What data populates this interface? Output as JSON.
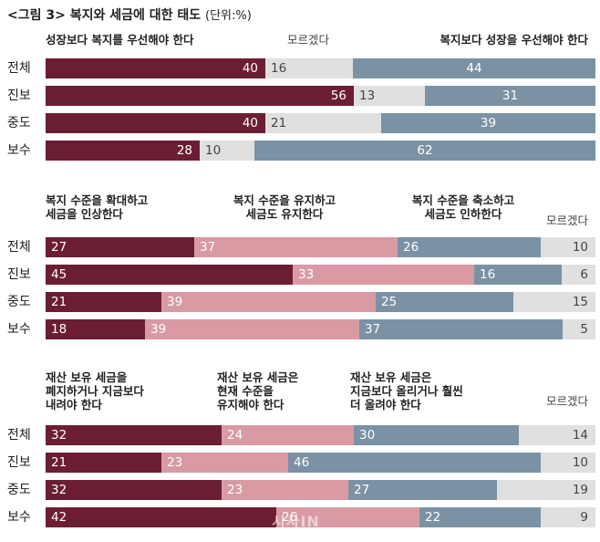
{
  "title": "<그림 3> 복지와 세금에 대한 태도",
  "unit": "(단위:%)",
  "watermark": "시사IN",
  "colors": {
    "dark": "#6b1e33",
    "pink": "#d99aa4",
    "blue": "#7b92a5",
    "gray": "#e0e0e0"
  },
  "chart_data": [
    {
      "type": "bar",
      "stacked": true,
      "orientation": "horizontal",
      "categories": [
        "전체",
        "진보",
        "중도",
        "보수"
      ],
      "series": [
        {
          "name": "성장보다 복지를 우선해야 한다",
          "values": [
            40,
            56,
            40,
            28
          ]
        },
        {
          "name": "모르겠다",
          "values": [
            16,
            13,
            21,
            10
          ]
        },
        {
          "name": "복지보다 성장을 우선해야 한다",
          "values": [
            44,
            31,
            39,
            62
          ]
        }
      ]
    },
    {
      "type": "bar",
      "stacked": true,
      "orientation": "horizontal",
      "categories": [
        "전체",
        "진보",
        "중도",
        "보수"
      ],
      "series": [
        {
          "name": "복지 수준을 확대하고 세금을 인상한다",
          "values": [
            27,
            45,
            21,
            18
          ]
        },
        {
          "name": "복지 수준을 유지하고 세금도 유지한다",
          "values": [
            37,
            33,
            39,
            39
          ]
        },
        {
          "name": "복지 수준을 축소하고 세금도 인하한다",
          "values": [
            26,
            16,
            25,
            37
          ]
        },
        {
          "name": "모르겠다",
          "values": [
            10,
            6,
            15,
            5
          ]
        }
      ]
    },
    {
      "type": "bar",
      "stacked": true,
      "orientation": "horizontal",
      "categories": [
        "전체",
        "진보",
        "중도",
        "보수"
      ],
      "series": [
        {
          "name": "재산 보유 세금을 폐지하거나 지금보다 내려야 한다",
          "values": [
            32,
            21,
            32,
            42
          ]
        },
        {
          "name": "재산 보유 세금은 현재 수준을 유지해야 한다",
          "values": [
            24,
            23,
            23,
            26
          ]
        },
        {
          "name": "재산 보유 세금은 지금보다 올리거나 훨씬 더 올려야 한다",
          "values": [
            30,
            46,
            27,
            22
          ]
        },
        {
          "name": "모르겠다",
          "values": [
            14,
            10,
            19,
            9
          ]
        }
      ]
    }
  ],
  "panels": [
    {
      "headers": [
        {
          "lines": [
            "성장보다 복지를 우선해야 한다"
          ],
          "dk": false
        },
        {
          "lines": [
            "모르겠다"
          ],
          "dk": true
        },
        {
          "lines": [
            "복지보다 성장을 우선해야 한다"
          ],
          "dk": false
        }
      ]
    },
    {
      "headers": [
        {
          "lines": [
            "복지 수준을 확대하고",
            "세금을 인상한다"
          ],
          "dk": false
        },
        {
          "lines": [
            "복지 수준을 유지하고",
            "세금도 유지한다"
          ],
          "dk": false
        },
        {
          "lines": [
            "복지 수준을 축소하고",
            "세금도 인하한다"
          ],
          "dk": false
        },
        {
          "lines": [
            "모르겠다"
          ],
          "dk": true
        }
      ]
    },
    {
      "headers": [
        {
          "lines": [
            "재산 보유 세금을",
            "폐지하거나 지금보다",
            "내려야 한다"
          ],
          "dk": false
        },
        {
          "lines": [
            "재산 보유 세금은",
            "현재 수준을",
            "유지해야 한다"
          ],
          "dk": false
        },
        {
          "lines": [
            "재산 보유 세금은",
            "지금보다 올리거나 훨씬",
            "더 올려야 한다"
          ],
          "dk": false
        },
        {
          "lines": [
            "모르겠다"
          ],
          "dk": true
        }
      ]
    }
  ]
}
